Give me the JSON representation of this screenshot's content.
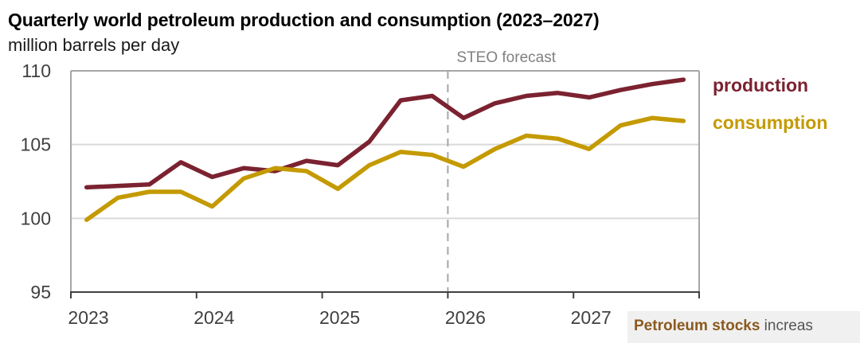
{
  "chart_data": {
    "type": "line",
    "title": "Quarterly world petroleum production and consumption (2023–2027)",
    "subtitle": "million barrels per day",
    "xlabel": "",
    "ylabel": "million barrels per day",
    "ylim": [
      95,
      110
    ],
    "xlim": [
      2023,
      2028
    ],
    "yticks": [
      95,
      100,
      105,
      110
    ],
    "ytick_labels": [
      "95",
      "100",
      "105",
      "110"
    ],
    "xticks": [
      2023,
      2024,
      2025,
      2026,
      2027,
      2028
    ],
    "xtick_labels": [
      "2023",
      "2024",
      "2025",
      "2026",
      "2027",
      ""
    ],
    "grid": "horizontal",
    "legend_placement": "right (inline labels)",
    "annotations": [
      {
        "text": "STEO forecast",
        "x": 2026,
        "style": "dashed-vertical-line"
      }
    ],
    "x": [
      "2023Q1",
      "2023Q2",
      "2023Q3",
      "2023Q4",
      "2024Q1",
      "2024Q2",
      "2024Q3",
      "2024Q4",
      "2025Q1",
      "2025Q2",
      "2025Q3",
      "2025Q4",
      "2026Q1",
      "2026Q2",
      "2026Q3",
      "2026Q4",
      "2027Q1",
      "2027Q2",
      "2027Q3",
      "2027Q4"
    ],
    "series": [
      {
        "name": "production",
        "color": "#7b2230",
        "values": [
          102.1,
          102.2,
          102.3,
          103.8,
          102.8,
          103.4,
          103.2,
          103.9,
          103.6,
          105.2,
          108.0,
          108.3,
          106.8,
          107.8,
          108.3,
          108.5,
          108.2,
          108.7,
          109.1,
          109.4
        ]
      },
      {
        "name": "consumption",
        "color": "#c49a00",
        "values": [
          99.9,
          101.4,
          101.8,
          101.8,
          100.8,
          102.7,
          103.4,
          103.2,
          102.0,
          103.6,
          104.5,
          104.3,
          103.5,
          104.7,
          105.6,
          105.4,
          104.7,
          106.3,
          106.8,
          106.6
        ]
      }
    ]
  },
  "caption": {
    "lead": "Petroleum stocks",
    "rest": " increas"
  },
  "colors": {
    "grid": "#d9d9d9",
    "axis": "#404040",
    "frame": "#a6a6a6",
    "forecast_line": "#a6a6a6",
    "tick_text": "#404040",
    "annotation_text": "#808080"
  }
}
